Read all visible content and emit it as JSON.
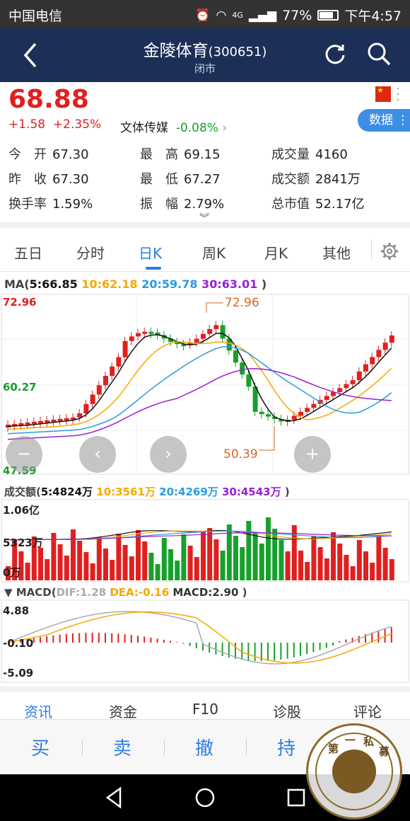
{
  "status_bar": {
    "carrier": "中国电信",
    "signal": "4G",
    "battery": "77%",
    "time": "下午4:57"
  },
  "header": {
    "title": "金陵体育",
    "code": "(300651)",
    "status": "闭市"
  },
  "quote": {
    "price": "68.88",
    "change": "+1.58",
    "change_pct": "+2.35%",
    "sector_name": "文体传媒",
    "sector_pct": "-0.08%",
    "data_button": "数据",
    "stats": [
      {
        "k": "今　开",
        "v": "67.30"
      },
      {
        "k": "最　高",
        "v": "69.15"
      },
      {
        "k": "成交量",
        "v": "4160"
      },
      {
        "k": "昨　收",
        "v": "67.30"
      },
      {
        "k": "最　低",
        "v": "67.27"
      },
      {
        "k": "成交额",
        "v": "2841万"
      },
      {
        "k": "换手率",
        "v": "1.59%"
      },
      {
        "k": "振　幅",
        "v": "2.79%"
      },
      {
        "k": "总市值",
        "v": "52.17亿"
      }
    ]
  },
  "tabs": [
    "五日",
    "分时",
    "日K",
    "周K",
    "月K",
    "其他"
  ],
  "active_tab": "日K",
  "ma_legend": {
    "label": "MA(",
    "ma5": "5:66.85",
    "ma10": "10:62.18",
    "ma20": "20:59.78",
    "ma30": "30:63.01",
    "close": ")"
  },
  "price_axis": {
    "top": "72.96",
    "mid": "60.27",
    "bottom": "47.59",
    "max_mark": "72.96",
    "min_mark": "50.39"
  },
  "vol_legend": {
    "label": "成交额(",
    "v5": "5:4824万",
    "v10": "10:3561万",
    "v20": "20:4269万",
    "v30": "30:4543万",
    "close": ")"
  },
  "vol_axis": {
    "top": "1.06亿",
    "mid": "5323万",
    "bottom": "0万"
  },
  "macd_legend": {
    "label": "▼ MACD(",
    "dif": "DIF:1.28",
    "dea": "DEA:-0.16",
    "macd": "MACD:2.90",
    "close": ")"
  },
  "macd_axis": {
    "top": "4.88",
    "mid": "-0.10",
    "bottom": "-5.09"
  },
  "info_tabs": [
    "资讯",
    "资金",
    "F10",
    "诊股",
    "评论"
  ],
  "actions": [
    "买",
    "卖",
    "撤",
    "持"
  ],
  "seal_text": [
    "第",
    "一",
    "私",
    "募"
  ],
  "colors": {
    "up": "#e02020",
    "down": "#17a02c",
    "ma5": "#111111",
    "ma10": "#f2a900",
    "ma20": "#2a9be0",
    "ma30": "#9a1fd4",
    "accent": "#2a7de1"
  }
}
